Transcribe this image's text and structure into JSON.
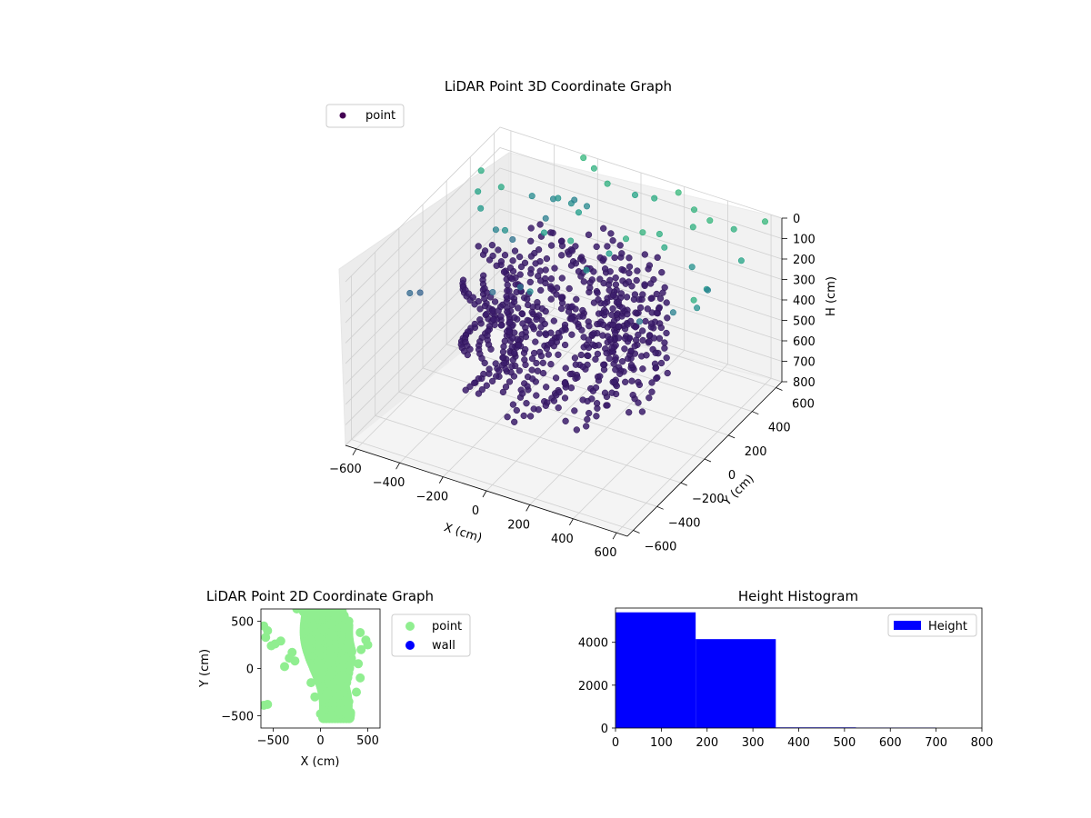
{
  "chart_data": [
    {
      "type": "scatter",
      "projection": "3d",
      "title": "LiDAR Point 3D Coordinate Graph",
      "xlabel": "X (cm)",
      "ylabel": "Y (cm)",
      "zlabel": "H (cm)",
      "xlim": [
        -650,
        650
      ],
      "ylim": [
        -650,
        650
      ],
      "zlim": [
        800,
        0
      ],
      "z_inverted": true,
      "xticks": [
        "−600",
        "−400",
        "−200",
        "0",
        "200",
        "400",
        "600"
      ],
      "yticks": [
        "−600",
        "−400",
        "−200",
        "0",
        "200",
        "400",
        "600"
      ],
      "zticks": [
        "0",
        "100",
        "200",
        "300",
        "400",
        "500",
        "600",
        "700",
        "800"
      ],
      "legend": [
        "point"
      ],
      "legend_position": "upper-left",
      "colormap": "viridis",
      "color_by": "H",
      "marker_color": "#440154",
      "grid": true,
      "series": [
        {
          "name": "point",
          "points": [
            [
              -600,
              400,
              50
            ],
            [
              -560,
              300,
              80
            ],
            [
              -520,
              250,
              120
            ],
            [
              -480,
              350,
              60
            ],
            [
              -600,
              -200,
              300
            ],
            [
              -580,
              -150,
              320
            ],
            [
              -450,
              250,
              200
            ],
            [
              -400,
              300,
              260
            ],
            [
              -380,
              200,
              150
            ],
            [
              -420,
              500,
              170
            ],
            [
              -350,
              550,
              190
            ],
            [
              -300,
              500,
              140
            ],
            [
              -330,
              450,
              220
            ],
            [
              -250,
              520,
              160
            ],
            [
              -280,
              600,
              200
            ],
            [
              -200,
              560,
              180
            ],
            [
              -150,
              400,
              100
            ],
            [
              -200,
              620,
              30
            ],
            [
              -260,
              640,
              10
            ],
            [
              -100,
              550,
              30
            ],
            [
              0,
              600,
              80
            ],
            [
              100,
              580,
              50
            ],
            [
              200,
              600,
              0
            ],
            [
              300,
              550,
              20
            ],
            [
              350,
              450,
              30
            ],
            [
              400,
              500,
              10
            ],
            [
              500,
              520,
              30
            ],
            [
              600,
              600,
              5
            ],
            [
              600,
              400,
              80
            ],
            [
              550,
              200,
              120
            ],
            [
              560,
              100,
              150
            ],
            [
              600,
              0,
              40
            ],
            [
              300,
              300,
              60
            ],
            [
              250,
              350,
              40
            ],
            [
              200,
              300,
              20
            ],
            [
              150,
              250,
              40
            ],
            [
              100,
              200,
              100
            ],
            [
              -50,
              150,
              60
            ],
            [
              -200,
              200,
              100
            ],
            [
              50,
              100,
              140
            ],
            [
              400,
              350,
              150
            ],
            [
              500,
              300,
              200
            ],
            [
              450,
              100,
              210
            ],
            [
              350,
              0,
              230
            ],
            [
              -100,
              -100,
              180
            ],
            [
              -200,
              0,
              250
            ],
            [
              -300,
              -50,
              280
            ]
          ]
        }
      ],
      "ring": {
        "center": [
          0,
          0
        ],
        "radius": 420,
        "h_range": [
          150,
          600
        ]
      }
    },
    {
      "type": "scatter",
      "title": "LiDAR Point 2D Coordinate Graph",
      "xlabel": "X (cm)",
      "ylabel": "Y (cm)",
      "xlim": [
        -630,
        630
      ],
      "ylim": [
        -630,
        630
      ],
      "xticks": [
        -500,
        0,
        500
      ],
      "yticks": [
        -500,
        0,
        500
      ],
      "legend": [
        "point",
        "wall"
      ],
      "legend_position": "outside-right",
      "colors": {
        "point": "#90ee90",
        "wall": "#0000ff"
      },
      "series": [
        {
          "name": "point",
          "points": [
            [
              -560,
              400
            ],
            [
              -600,
              450
            ],
            [
              -580,
              330
            ],
            [
              -560,
              -380
            ],
            [
              -600,
              -390
            ],
            [
              -520,
              240
            ],
            [
              -480,
              260
            ],
            [
              -420,
              290
            ],
            [
              -330,
              110
            ],
            [
              -270,
              80
            ],
            [
              -300,
              170
            ],
            [
              -250,
              630
            ],
            [
              -180,
              600
            ],
            [
              -380,
              20
            ],
            [
              -100,
              -150
            ],
            [
              -60,
              -300
            ],
            [
              0,
              -480
            ],
            [
              60,
              -530
            ],
            [
              120,
              -500
            ],
            [
              200,
              -450
            ],
            [
              300,
              -350
            ],
            [
              380,
              -250
            ],
            [
              420,
              -100
            ],
            [
              400,
              50
            ],
            [
              430,
              200
            ],
            [
              420,
              380
            ],
            [
              480,
              300
            ],
            [
              500,
              250
            ],
            [
              300,
              500
            ],
            [
              220,
              620
            ],
            [
              150,
              600
            ],
            [
              -120,
              300
            ],
            [
              -80,
              450
            ],
            [
              -30,
              580
            ],
            [
              30,
              620
            ]
          ]
        },
        {
          "name": "wall",
          "points": []
        }
      ]
    },
    {
      "type": "bar",
      "subtype": "histogram",
      "title": "Height Histogram",
      "xlabel": "",
      "ylabel": "",
      "xlim": [
        0,
        800
      ],
      "ylim": [
        0,
        5600
      ],
      "xticks": [
        0,
        100,
        200,
        300,
        400,
        500,
        600,
        700,
        800
      ],
      "yticks": [
        0,
        2000,
        4000
      ],
      "legend": [
        "Height"
      ],
      "legend_position": "top-right",
      "color": "#0000ff",
      "bins": [
        {
          "x0": 0,
          "x1": 175,
          "value": 5400
        },
        {
          "x0": 175,
          "x1": 350,
          "value": 4150
        },
        {
          "x0": 350,
          "x1": 525,
          "value": 30
        },
        {
          "x0": 525,
          "x1": 700,
          "value": 20
        }
      ]
    }
  ]
}
